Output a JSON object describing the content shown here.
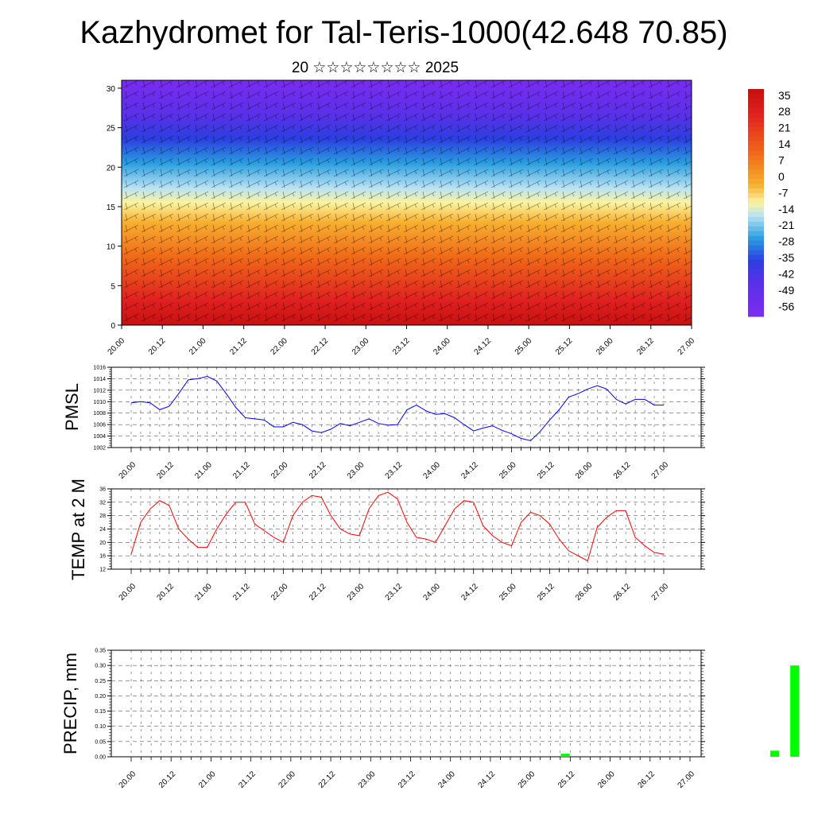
{
  "header": {
    "title": "Kazhydromet for Tal-Teris-1000(42.648 70.85)",
    "subtitle": "20 ☆☆☆☆☆☆☆☆ 2025"
  },
  "time_ticks": [
    "20.00",
    "20.12",
    "21.00",
    "21.12",
    "22.00",
    "22.12",
    "23.00",
    "23.12",
    "24.00",
    "24.12",
    "25.00",
    "25.12",
    "26.00",
    "26.12",
    "27.00"
  ],
  "chart_data": [
    {
      "type": "heatmap",
      "name": "temperature-cross-section",
      "x_ticks": [
        "20.00",
        "20.12",
        "21.00",
        "21.12",
        "22.00",
        "22.12",
        "23.00",
        "23.12",
        "24.00",
        "24.12",
        "25.00",
        "25.12",
        "26.00",
        "26.12",
        "27.00"
      ],
      "y_ticks": [
        0,
        5,
        10,
        15,
        20,
        25,
        30
      ],
      "ylim": [
        0,
        31
      ],
      "colorbar_ticks": [
        35,
        28,
        21,
        14,
        7,
        0,
        -7,
        -14,
        -21,
        -28,
        -35,
        -42,
        -49,
        -56
      ],
      "colorbar_range": [
        -60,
        38
      ],
      "colors": {
        "warm": "#d21414",
        "orange": "#f59a1a",
        "yellow": "#fbf3a0",
        "lightblue": "#b8e2f5",
        "blue": "#2a9fe0",
        "darkblue": "#2b3fe0",
        "violet": "#7a2cf0"
      }
    },
    {
      "type": "line",
      "name": "pmsl",
      "ylabel": "PMSL",
      "ylim": [
        1002,
        1016
      ],
      "y_ticks": [
        1002,
        1004,
        1006,
        1008,
        1010,
        1012,
        1014,
        1016
      ],
      "x_ticks": [
        "20.00",
        "20.12",
        "21.00",
        "21.12",
        "22.00",
        "22.12",
        "23.00",
        "23.12",
        "24.00",
        "24.12",
        "25.00",
        "25.12",
        "26.00",
        "26.12",
        "27.00"
      ],
      "color": "#0000ff",
      "values": [
        1009.8,
        1010.0,
        1009.8,
        1008.6,
        1009.2,
        1011.4,
        1013.8,
        1014.0,
        1014.4,
        1013.6,
        1011.4,
        1009.0,
        1007.2,
        1007.0,
        1006.8,
        1005.6,
        1005.6,
        1006.4,
        1006.0,
        1004.9,
        1004.6,
        1005.2,
        1006.2,
        1005.8,
        1006.4,
        1007.0,
        1006.2,
        1005.9,
        1006.0,
        1008.6,
        1009.4,
        1008.4,
        1007.8,
        1007.9,
        1007.2,
        1006.0,
        1004.9,
        1005.4,
        1005.8,
        1005.0,
        1004.4,
        1003.6,
        1003.2,
        1004.8,
        1006.8,
        1008.6,
        1010.8,
        1011.4,
        1012.2,
        1012.8,
        1012.2,
        1010.4,
        1009.6,
        1010.4,
        1010.4,
        1009.4,
        1009.4
      ]
    },
    {
      "type": "line",
      "name": "temp-2m",
      "ylabel": "TEMP at 2 M",
      "ylim": [
        12,
        36
      ],
      "y_ticks": [
        12,
        16,
        20,
        24,
        28,
        32,
        36
      ],
      "x_ticks": [
        "20.00",
        "20.12",
        "21.00",
        "21.12",
        "22.00",
        "22.12",
        "23.00",
        "23.12",
        "24.00",
        "24.12",
        "25.00",
        "25.12",
        "26.00",
        "26.12",
        "27.00"
      ],
      "color": "#ff0000",
      "values": [
        16.5,
        26.0,
        30.0,
        32.5,
        31.0,
        24.0,
        21.0,
        18.5,
        18.5,
        24.0,
        28.5,
        32.0,
        32.0,
        25.5,
        23.5,
        21.5,
        20.0,
        28.0,
        32.0,
        34.0,
        33.5,
        28.0,
        24.0,
        22.5,
        22.0,
        30.0,
        34.0,
        35.0,
        33.0,
        26.0,
        21.5,
        21.0,
        20.0,
        25.0,
        30.0,
        32.5,
        32.0,
        25.0,
        22.0,
        20.0,
        19.0,
        26.0,
        29.0,
        28.0,
        25.5,
        21.0,
        17.5,
        16.0,
        14.5,
        24.5,
        27.5,
        29.5,
        29.5,
        21.5,
        19.0,
        17.0,
        16.5
      ]
    },
    {
      "type": "bar",
      "name": "precip",
      "ylabel": "PRECIP, mm",
      "ylim": [
        0,
        0.35
      ],
      "y_ticks": [
        "0.00",
        "0.05",
        "0.10",
        "0.15",
        "0.20",
        "0.25",
        "0.30",
        "0.35"
      ],
      "x_ticks": [
        "20.00",
        "20.12",
        "21.00",
        "21.12",
        "22.00",
        "22.12",
        "23.00",
        "23.12",
        "24.00",
        "24.12",
        "25.00",
        "25.12",
        "26.00",
        "26.12",
        "27.00"
      ],
      "color": "#00ff00",
      "bars": [
        {
          "t": 43.5,
          "value": 0.01
        },
        {
          "t": 64.5,
          "value": 0.02
        },
        {
          "t": 66.5,
          "value": 0.3
        }
      ]
    }
  ]
}
